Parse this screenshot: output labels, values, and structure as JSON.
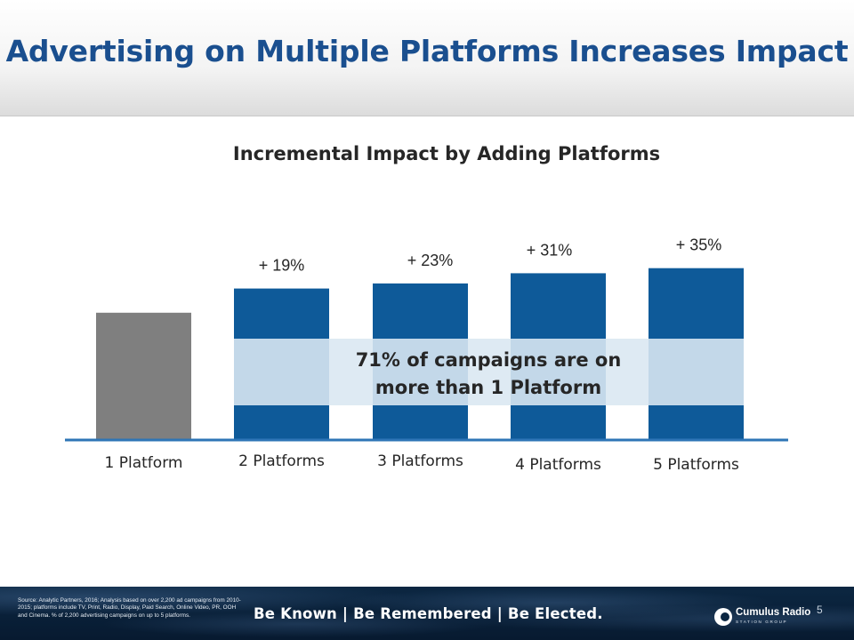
{
  "slide": {
    "title": "Advertising on Multiple Platforms Increases Impact",
    "page_number": "5"
  },
  "chart_data": {
    "type": "bar",
    "title": "Incremental Impact by Adding Platforms",
    "categories": [
      "1 Platform",
      "2 Platforms",
      "3 Platforms",
      "4 Platforms",
      "5 Platforms"
    ],
    "values": [
      100,
      119,
      123,
      131,
      135
    ],
    "value_labels": [
      "",
      "+ 19%",
      "+ 23%",
      "+ 31%",
      "+ 35%"
    ],
    "ylim": [
      0,
      150
    ],
    "grid": false,
    "legend": "none",
    "annotation": {
      "lines": [
        "71% of campaigns are on",
        "more than 1 Platform"
      ]
    },
    "colors": {
      "base_bar": "#7f7f7f",
      "bar": "#0e5a99",
      "highlight_band": "#c3d8e9",
      "axis": "#2e75b6",
      "text": "#262626"
    }
  },
  "footer": {
    "source": "Source: Analytic Partners, 2016; Analysis based on over 2,200 ad campaigns from 2010-2015; platforms include TV, Print, Radio, Display, Paid Search, Online Video, PR, OOH and Cinema. % of 2,200 advertising campaigns on up to 5 platforms.",
    "tagline": "Be Known | Be Remembered | Be Elected.",
    "logo_name": "Cumulus Radio",
    "logo_sub": "STATION GROUP"
  }
}
